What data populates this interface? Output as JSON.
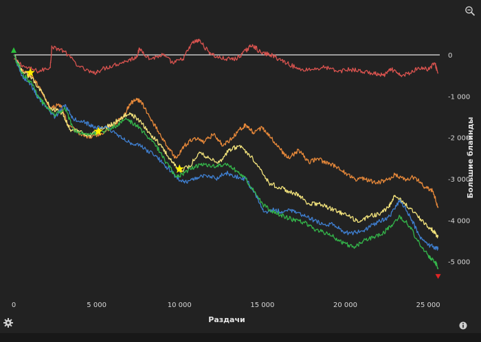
{
  "icons": {
    "zoom": "zoom-out-icon",
    "settings": "gear-icon",
    "info": "info-icon"
  },
  "chart_data": {
    "type": "line",
    "title": "",
    "xlabel": "Раздачи",
    "ylabel": "Большие блайнды",
    "xlim": [
      0,
      25700
    ],
    "ylim": [
      -5800,
      200
    ],
    "x_ticks": [
      0,
      5000,
      10000,
      15000,
      20000,
      25000
    ],
    "x_tick_labels": [
      "0",
      "5 000",
      "10 000",
      "15 000",
      "20 000",
      "25 000"
    ],
    "y_ticks": [
      0,
      -1000,
      -2000,
      -3000,
      -4000,
      -5000
    ],
    "y_tick_labels": [
      "0",
      "-1 000",
      "-2 000",
      "-3 000",
      "-4 000",
      "-5 000"
    ],
    "grid": false,
    "legend": "none",
    "zero_line": {
      "y": 0,
      "color": "#ffffff"
    },
    "series": [
      {
        "color": "#d9534f",
        "x": [
          0,
          700,
          1500,
          2200,
          2300,
          3000,
          4000,
          4800,
          5300,
          6000,
          6800,
          7400,
          7600,
          8200,
          9000,
          9600,
          10200,
          10800,
          11200,
          11700,
          12200,
          12800,
          13400,
          14000,
          14400,
          14900,
          15500,
          16000,
          16500,
          17200,
          18000,
          18800,
          19500,
          20300,
          21000,
          21700,
          22300,
          22800,
          23300,
          23900,
          24400,
          25000,
          25400,
          25600
        ],
        "values": [
          -100,
          -300,
          -400,
          -300,
          200,
          100,
          -300,
          -450,
          -350,
          -250,
          -150,
          -50,
          150,
          -100,
          0,
          -200,
          -100,
          300,
          350,
          100,
          -50,
          -100,
          -100,
          100,
          250,
          50,
          0,
          -100,
          -200,
          -350,
          -350,
          -300,
          -400,
          -350,
          -400,
          -450,
          -500,
          -350,
          -500,
          -450,
          -300,
          -350,
          -200,
          -450
        ]
      },
      {
        "color": "#e8893a",
        "x": [
          0,
          500,
          1000,
          1600,
          2200,
          2800,
          3300,
          4000,
          4600,
          5300,
          6000,
          6600,
          7000,
          7400,
          7700,
          8200,
          8800,
          9400,
          9800,
          10300,
          10900,
          11500,
          12100,
          12600,
          13200,
          13600,
          14000,
          14500,
          15000,
          15500,
          16100,
          16600,
          17200,
          17800,
          18300,
          18800,
          19400,
          20000,
          20600,
          21200,
          21800,
          22400,
          23000,
          23600,
          24200,
          24800,
          25300,
          25600
        ],
        "values": [
          0,
          -400,
          -500,
          -800,
          -1300,
          -1200,
          -1700,
          -1900,
          -2000,
          -1900,
          -1700,
          -1500,
          -1200,
          -1050,
          -1150,
          -1500,
          -1900,
          -2300,
          -2500,
          -2200,
          -2000,
          -2100,
          -1900,
          -2200,
          -2000,
          -1800,
          -1700,
          -1900,
          -1750,
          -2000,
          -2300,
          -2500,
          -2300,
          -2600,
          -2500,
          -2600,
          -2700,
          -2850,
          -3000,
          -3000,
          -3100,
          -3050,
          -2900,
          -3000,
          -2950,
          -3200,
          -3300,
          -3700
        ]
      },
      {
        "color": "#f3e37c",
        "x": [
          0,
          500,
          1100,
          1700,
          2300,
          2900,
          3400,
          4000,
          4600,
          5200,
          5800,
          6400,
          7000,
          7600,
          8200,
          8800,
          9400,
          10000,
          10600,
          11200,
          11800,
          12400,
          13000,
          13600,
          14200,
          14800,
          15400,
          16000,
          16600,
          17200,
          17800,
          18400,
          19000,
          19600,
          20200,
          20800,
          21400,
          22000,
          22600,
          23000,
          23600,
          24200,
          24800,
          25300,
          25600
        ],
        "values": [
          0,
          -400,
          -550,
          -900,
          -1300,
          -1400,
          -1800,
          -1850,
          -1950,
          -1800,
          -1700,
          -1550,
          -1400,
          -1600,
          -1900,
          -2150,
          -2500,
          -2800,
          -2700,
          -2350,
          -2500,
          -2600,
          -2300,
          -2200,
          -2400,
          -2700,
          -3100,
          -3200,
          -3300,
          -3400,
          -3600,
          -3600,
          -3700,
          -3800,
          -3900,
          -4050,
          -3900,
          -3850,
          -3700,
          -3400,
          -3600,
          -3800,
          -4100,
          -4250,
          -4400
        ]
      },
      {
        "color": "#3f7fd0",
        "x": [
          0,
          500,
          1000,
          1500,
          2000,
          2500,
          3100,
          3600,
          4200,
          4800,
          5500,
          6200,
          6800,
          7400,
          8000,
          8600,
          9200,
          9800,
          10300,
          10900,
          11500,
          12200,
          12800,
          13400,
          14000,
          14600,
          15100,
          15700,
          16300,
          16900,
          17500,
          18100,
          18700,
          19300,
          19900,
          20500,
          21100,
          21700,
          22200,
          22700,
          23300,
          23900,
          24500,
          25000,
          25400,
          25600
        ],
        "values": [
          0,
          -500,
          -700,
          -1050,
          -1300,
          -1500,
          -1200,
          -1550,
          -1600,
          -1750,
          -1750,
          -1900,
          -2100,
          -2150,
          -2300,
          -2450,
          -2700,
          -2950,
          -3100,
          -3000,
          -2900,
          -3000,
          -2850,
          -2950,
          -3000,
          -3400,
          -3800,
          -3750,
          -3800,
          -3750,
          -3900,
          -4000,
          -4100,
          -4100,
          -4300,
          -4300,
          -4250,
          -4100,
          -4000,
          -3900,
          -3500,
          -3900,
          -4400,
          -4600,
          -4650,
          -4700
        ]
      },
      {
        "color": "#34b54a",
        "x": [
          0,
          500,
          1000,
          1500,
          2000,
          2500,
          3100,
          3600,
          4200,
          4800,
          5500,
          6200,
          6800,
          7400,
          8000,
          8600,
          9200,
          9800,
          10300,
          10900,
          11500,
          12200,
          12800,
          13400,
          14000,
          14600,
          15100,
          15700,
          16300,
          16900,
          17500,
          18100,
          18700,
          19300,
          19900,
          20500,
          21100,
          21700,
          22200,
          22700,
          23300,
          23900,
          24500,
          25000,
          25400,
          25600
        ],
        "values": [
          0,
          -450,
          -650,
          -1000,
          -1300,
          -1450,
          -1300,
          -1800,
          -1900,
          -1900,
          -1850,
          -1700,
          -1550,
          -1700,
          -1950,
          -2200,
          -2600,
          -2950,
          -2850,
          -2700,
          -2650,
          -2700,
          -2650,
          -2800,
          -3000,
          -3350,
          -3650,
          -3800,
          -3900,
          -4000,
          -4050,
          -4200,
          -4300,
          -4400,
          -4550,
          -4650,
          -4500,
          -4400,
          -4350,
          -4150,
          -3900,
          -4150,
          -4600,
          -4850,
          -5000,
          -5150
        ]
      }
    ],
    "markers": [
      {
        "type": "star",
        "color": "#ffee00",
        "x": 1000,
        "y": -430
      },
      {
        "type": "star",
        "color": "#ffee00",
        "x": 5100,
        "y": -1850
      },
      {
        "type": "star",
        "color": "#ffee00",
        "x": 10000,
        "y": -2760
      },
      {
        "type": "triangle-down",
        "color": "#e02424",
        "x": 25600,
        "y": -5350
      },
      {
        "type": "triangle-up",
        "color": "#2bbf3b",
        "x": 0,
        "y": 100
      }
    ]
  }
}
